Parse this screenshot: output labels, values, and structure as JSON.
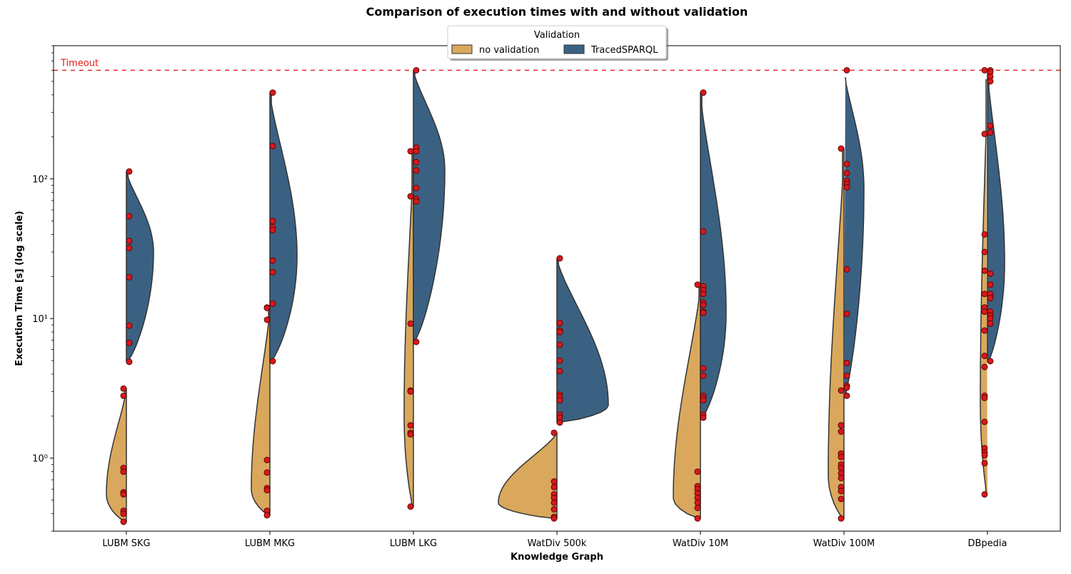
{
  "chart_data": {
    "type": "violin",
    "title": "Comparison of execution times with and without validation",
    "xlabel": "Knowledge Graph",
    "ylabel": "Execution Time [s] (log scale)",
    "yscale": "log",
    "ylim": [
      0.3,
      900
    ],
    "yticks": [
      {
        "value": 1,
        "label": "10⁰"
      },
      {
        "value": 10,
        "label": "10¹"
      },
      {
        "value": 100,
        "label": "10²"
      }
    ],
    "categories": [
      "LUBM SKG",
      "LUBM MKG",
      "LUBM LKG",
      "WatDiv 500k",
      "WatDiv 10M",
      "WatDiv 100M",
      "DBpedia"
    ],
    "timeout": {
      "label": "Timeout",
      "value": 600,
      "color": "#e31a1c"
    },
    "legend": {
      "title": "Validation",
      "placement": "top-center"
    },
    "point_color": "#d7191c",
    "series": [
      {
        "name": "no validation",
        "side": "left",
        "color": "#d9a85c",
        "groups": [
          {
            "min": 0.35,
            "max": 3.15,
            "peak": 0.55,
            "width": 28,
            "points": [
              3.15,
              2.8,
              0.85,
              0.8,
              0.57,
              0.55,
              0.42,
              0.4,
              0.35
            ]
          },
          {
            "min": 0.39,
            "max": 12.0,
            "peak": 0.6,
            "width": 26,
            "points": [
              12.0,
              11.9,
              9.8,
              0.97,
              0.79,
              0.61,
              0.59,
              0.42,
              0.39
            ]
          },
          {
            "min": 0.45,
            "max": 160,
            "peak": 2.0,
            "width": 13,
            "points": [
              158,
              75,
              9.2,
              3.05,
              3.0,
              1.72,
              1.52,
              1.48,
              0.45
            ]
          },
          {
            "min": 0.37,
            "max": 1.52,
            "peak": 0.48,
            "width": 82,
            "points": [
              1.52,
              0.68,
              0.62,
              0.55,
              0.52,
              0.48,
              0.43,
              0.38,
              0.37
            ]
          },
          {
            "min": 0.37,
            "max": 17.5,
            "peak": 0.52,
            "width": 38,
            "points": [
              17.5,
              0.8,
              0.63,
              0.6,
              0.56,
              0.52,
              0.48,
              0.44,
              0.37
            ]
          },
          {
            "min": 0.37,
            "max": 165,
            "peak": 0.75,
            "width": 22,
            "points": [
              165,
              3.05,
              1.72,
              1.55,
              1.08,
              1.02,
              0.9,
              0.85,
              0.78,
              0.72,
              0.62,
              0.58,
              0.51,
              0.37
            ]
          },
          {
            "min": 0.55,
            "max": 600,
            "peak": 2.5,
            "width": 10,
            "points": [
              600,
              210,
              40,
              30,
              22,
              15,
              12,
              11.2,
              8.2,
              5.4,
              4.5,
              2.8,
              2.7,
              1.82,
              1.18,
              1.1,
              1.05,
              0.92,
              0.55
            ]
          }
        ]
      },
      {
        "name": "TracedSPARQL",
        "side": "right",
        "color": "#3b6182",
        "groups": [
          {
            "min": 4.9,
            "max": 113,
            "peak": 30,
            "width": 38,
            "points": [
              113,
              54,
              36,
              32,
              19.8,
              8.9,
              6.7,
              4.9
            ]
          },
          {
            "min": 4.9,
            "max": 415,
            "peak": 28,
            "width": 38,
            "points": [
              415,
              172,
              50,
              45,
              43,
              26,
              21.5,
              12.8,
              4.95
            ]
          },
          {
            "min": 6.8,
            "max": 600,
            "peak": 115,
            "width": 44,
            "points": [
              600,
              168,
              158,
              132,
              115,
              86,
              72,
              69,
              6.8
            ]
          },
          {
            "min": 1.8,
            "max": 27,
            "peak": 2.4,
            "width": 72,
            "points": [
              27,
              9.3,
              8.2,
              8.0,
              6.5,
              5.0,
              4.2,
              2.85,
              2.75,
              2.6,
              2.05,
              1.95,
              1.8
            ]
          },
          {
            "min": 1.9,
            "max": 415,
            "peak": 11,
            "width": 36,
            "points": [
              415,
              42,
              17,
              16,
              15,
              13,
              12.5,
              11.2,
              11.0,
              4.4,
              3.9,
              2.8,
              2.7,
              2.6,
              2.05,
              1.95
            ]
          },
          {
            "min": 2.75,
            "max": 600,
            "peak": 85,
            "width": 28,
            "points": [
              600,
              128,
              110,
              97,
              92,
              87,
              22.5,
              10.8,
              4.8,
              3.9,
              3.3,
              3.2,
              2.8
            ]
          },
          {
            "min": 4.9,
            "max": 600,
            "peak": 25,
            "width": 24,
            "points": [
              600,
              580,
              540,
              500,
              240,
              215,
              21,
              17.5,
              15,
              14,
              11.2,
              10.5,
              10.0,
              9.2,
              4.95
            ]
          }
        ]
      }
    ]
  }
}
